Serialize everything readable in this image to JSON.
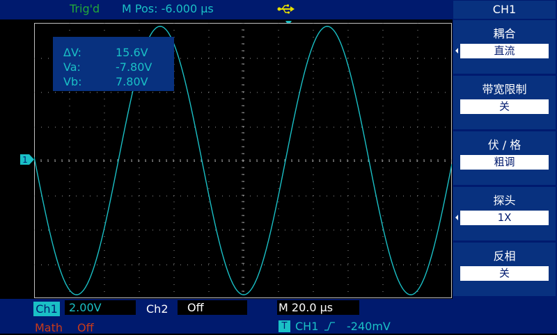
{
  "status": {
    "trigger_state": "Trig'd",
    "m_pos_label": "M Pos:",
    "m_pos_value": "-6.000 µs"
  },
  "cursor": {
    "delta_label": "ΔV:",
    "delta_value": "15.6V",
    "va_label": "Va:",
    "va_value": "-7.80V",
    "vb_label": "Vb:",
    "vb_value": "7.80V"
  },
  "channel_marker": "1",
  "bottom": {
    "ch1_label": "Ch1",
    "ch1_volts": "2.00V",
    "ch2_label": "Ch2",
    "ch2_value": "Off",
    "timebase": "M 20.0 µs",
    "math_label": "Math",
    "math_value": "Off",
    "trigger_badge": "T",
    "trigger_source": "CH1",
    "trigger_level": "-240mV"
  },
  "menu": {
    "title": "CH1",
    "items": [
      {
        "label": "耦合",
        "value": "直流",
        "arrow": true
      },
      {
        "label": "带宽限制",
        "value": "关",
        "arrow": false
      },
      {
        "label": "伏 / 格",
        "value": "粗调",
        "arrow": false
      },
      {
        "label": "探头",
        "value": "1X",
        "arrow": true
      },
      {
        "label": "反相",
        "value": "关",
        "arrow": false
      }
    ]
  },
  "colors": {
    "channel1": "#1ac0c6",
    "math": "#c83a1a",
    "trigger_text": "#22a83a",
    "panel": "#001a6e"
  },
  "waveform": {
    "amplitude_v": 7.8,
    "period_us": 96,
    "volts_per_div": 2.0,
    "time_per_div_us": 20.0
  }
}
